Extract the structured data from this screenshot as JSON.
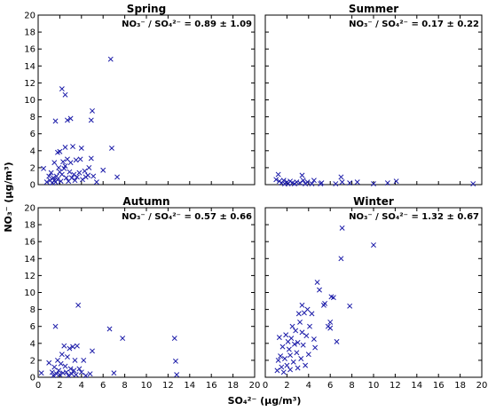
{
  "chart_data": {
    "type": "scatter",
    "xlabel": "SO₄²⁻  (μg/m³)",
    "ylabel": "NO₃⁻  (μg/m³)",
    "xlim": [
      0,
      20
    ],
    "ylim": [
      0,
      20
    ],
    "x_ticks": [
      "0",
      "2",
      "4",
      "6",
      "8",
      "10",
      "12",
      "14",
      "16",
      "18",
      "20"
    ],
    "y_ticks": [
      "0",
      "2",
      "4",
      "6",
      "8",
      "10",
      "12",
      "14",
      "16",
      "18",
      "20"
    ],
    "marker": "x",
    "marker_color": "#1a1aa8",
    "grid": false,
    "panels": [
      {
        "title": "Spring",
        "annotation": "NO₃⁻ / SO₄²⁻ = 0.89 ± 1.09",
        "points": [
          [
            0.5,
            1.9
          ],
          [
            0.8,
            0.3
          ],
          [
            1.0,
            1.0
          ],
          [
            1.1,
            0.5
          ],
          [
            1.2,
            1.4
          ],
          [
            1.3,
            0.2
          ],
          [
            1.4,
            0.8
          ],
          [
            1.5,
            0.5
          ],
          [
            1.5,
            2.6
          ],
          [
            1.6,
            7.5
          ],
          [
            1.6,
            0.3
          ],
          [
            1.7,
            1.0
          ],
          [
            1.8,
            3.8
          ],
          [
            1.8,
            0.6
          ],
          [
            1.9,
            2.0
          ],
          [
            2.0,
            3.9
          ],
          [
            2.0,
            1.5
          ],
          [
            2.1,
            0.4
          ],
          [
            2.2,
            11.3
          ],
          [
            2.2,
            1.2
          ],
          [
            2.3,
            2.7
          ],
          [
            2.4,
            1.9
          ],
          [
            2.5,
            10.6
          ],
          [
            2.5,
            4.4
          ],
          [
            2.5,
            2.2
          ],
          [
            2.6,
            0.8
          ],
          [
            2.7,
            7.6
          ],
          [
            2.7,
            3.0
          ],
          [
            2.8,
            0.4
          ],
          [
            2.9,
            1.5
          ],
          [
            3.0,
            7.8
          ],
          [
            3.0,
            2.6
          ],
          [
            3.1,
            0.8
          ],
          [
            3.2,
            4.5
          ],
          [
            3.3,
            1.2
          ],
          [
            3.4,
            0.5
          ],
          [
            3.5,
            2.9
          ],
          [
            3.6,
            0.9
          ],
          [
            3.8,
            1.4
          ],
          [
            3.9,
            3.0
          ],
          [
            4.0,
            4.3
          ],
          [
            4.1,
            0.6
          ],
          [
            4.3,
            1.6
          ],
          [
            4.4,
            0.9
          ],
          [
            4.6,
            1.1
          ],
          [
            4.7,
            2.0
          ],
          [
            4.9,
            7.6
          ],
          [
            4.9,
            3.1
          ],
          [
            5.0,
            8.7
          ],
          [
            5.1,
            1.0
          ],
          [
            5.4,
            0.3
          ],
          [
            6.0,
            1.7
          ],
          [
            6.7,
            14.8
          ],
          [
            6.8,
            4.3
          ],
          [
            7.3,
            0.9
          ]
        ]
      },
      {
        "title": "Summer",
        "annotation": "NO₃⁻ / SO₄²⁻ = 0.17 ± 0.22",
        "points": [
          [
            1.0,
            0.6
          ],
          [
            1.2,
            1.2
          ],
          [
            1.3,
            0.4
          ],
          [
            1.5,
            0.2
          ],
          [
            1.7,
            0.5
          ],
          [
            1.8,
            0.1
          ],
          [
            2.0,
            0.3
          ],
          [
            2.1,
            0.1
          ],
          [
            2.3,
            0.4
          ],
          [
            2.5,
            0.2
          ],
          [
            2.7,
            0.1
          ],
          [
            2.9,
            0.3
          ],
          [
            3.2,
            0.2
          ],
          [
            3.4,
            1.1
          ],
          [
            3.5,
            0.5
          ],
          [
            3.7,
            0.1
          ],
          [
            3.9,
            0.3
          ],
          [
            4.3,
            0.1
          ],
          [
            4.5,
            0.5
          ],
          [
            5.1,
            0.1
          ],
          [
            5.2,
            0.2
          ],
          [
            6.5,
            0.1
          ],
          [
            7.0,
            0.9
          ],
          [
            7.1,
            0.3
          ],
          [
            7.8,
            0.2
          ],
          [
            8.5,
            0.3
          ],
          [
            10.0,
            0.1
          ],
          [
            11.3,
            0.2
          ],
          [
            12.1,
            0.4
          ],
          [
            19.2,
            0.1
          ]
        ]
      },
      {
        "title": "Autumn",
        "annotation": "NO₃⁻ / SO₄²⁻ = 0.57 ± 0.66",
        "points": [
          [
            0.3,
            0.5
          ],
          [
            1.0,
            1.7
          ],
          [
            1.3,
            0.6
          ],
          [
            1.4,
            0.2
          ],
          [
            1.5,
            1.2
          ],
          [
            1.6,
            6.0
          ],
          [
            1.7,
            0.4
          ],
          [
            1.8,
            2.0
          ],
          [
            1.9,
            0.8
          ],
          [
            2.0,
            0.3
          ],
          [
            2.1,
            1.6
          ],
          [
            2.2,
            2.7
          ],
          [
            2.3,
            0.5
          ],
          [
            2.4,
            3.7
          ],
          [
            2.5,
            1.3
          ],
          [
            2.6,
            0.6
          ],
          [
            2.7,
            2.4
          ],
          [
            2.8,
            0.2
          ],
          [
            2.9,
            3.4
          ],
          [
            3.0,
            1.0
          ],
          [
            3.1,
            0.4
          ],
          [
            3.2,
            3.6
          ],
          [
            3.3,
            0.8
          ],
          [
            3.4,
            2.0
          ],
          [
            3.5,
            0.3
          ],
          [
            3.6,
            3.7
          ],
          [
            3.7,
            8.5
          ],
          [
            3.8,
            1.0
          ],
          [
            4.0,
            0.6
          ],
          [
            4.2,
            2.0
          ],
          [
            4.4,
            0.2
          ],
          [
            4.8,
            0.4
          ],
          [
            5.0,
            3.1
          ],
          [
            6.6,
            5.7
          ],
          [
            7.0,
            0.5
          ],
          [
            7.8,
            4.6
          ],
          [
            12.6,
            4.6
          ],
          [
            12.7,
            1.9
          ],
          [
            12.8,
            0.3
          ]
        ]
      },
      {
        "title": "Winter",
        "annotation": "NO₃⁻ / SO₄²⁻ = 1.32 ± 0.67",
        "points": [
          [
            1.1,
            0.8
          ],
          [
            1.2,
            2.0
          ],
          [
            1.3,
            4.7
          ],
          [
            1.4,
            2.5
          ],
          [
            1.5,
            1.2
          ],
          [
            1.6,
            3.6
          ],
          [
            1.7,
            0.6
          ],
          [
            1.8,
            2.2
          ],
          [
            1.9,
            5.0
          ],
          [
            2.0,
            1.4
          ],
          [
            2.1,
            4.2
          ],
          [
            2.2,
            3.3
          ],
          [
            2.3,
            0.9
          ],
          [
            2.3,
            2.6
          ],
          [
            2.4,
            4.6
          ],
          [
            2.5,
            6.0
          ],
          [
            2.6,
            1.8
          ],
          [
            2.7,
            3.9
          ],
          [
            2.8,
            5.5
          ],
          [
            2.9,
            2.9
          ],
          [
            3.0,
            1.1
          ],
          [
            3.0,
            4.1
          ],
          [
            3.1,
            7.5
          ],
          [
            3.2,
            6.5
          ],
          [
            3.3,
            2.2
          ],
          [
            3.4,
            5.3
          ],
          [
            3.4,
            8.5
          ],
          [
            3.5,
            3.8
          ],
          [
            3.6,
            7.6
          ],
          [
            3.7,
            1.4
          ],
          [
            3.8,
            4.9
          ],
          [
            3.9,
            8.0
          ],
          [
            4.0,
            2.7
          ],
          [
            4.1,
            6.0
          ],
          [
            4.3,
            7.5
          ],
          [
            4.5,
            4.5
          ],
          [
            4.6,
            3.5
          ],
          [
            4.8,
            11.2
          ],
          [
            5.0,
            10.3
          ],
          [
            5.4,
            8.5
          ],
          [
            5.5,
            8.7
          ],
          [
            5.8,
            6.0
          ],
          [
            6.0,
            6.5
          ],
          [
            6.0,
            5.8
          ],
          [
            6.1,
            9.5
          ],
          [
            6.3,
            9.4
          ],
          [
            6.6,
            4.2
          ],
          [
            7.0,
            14.0
          ],
          [
            7.1,
            17.6
          ],
          [
            7.8,
            8.4
          ],
          [
            10.0,
            15.6
          ]
        ]
      }
    ]
  }
}
